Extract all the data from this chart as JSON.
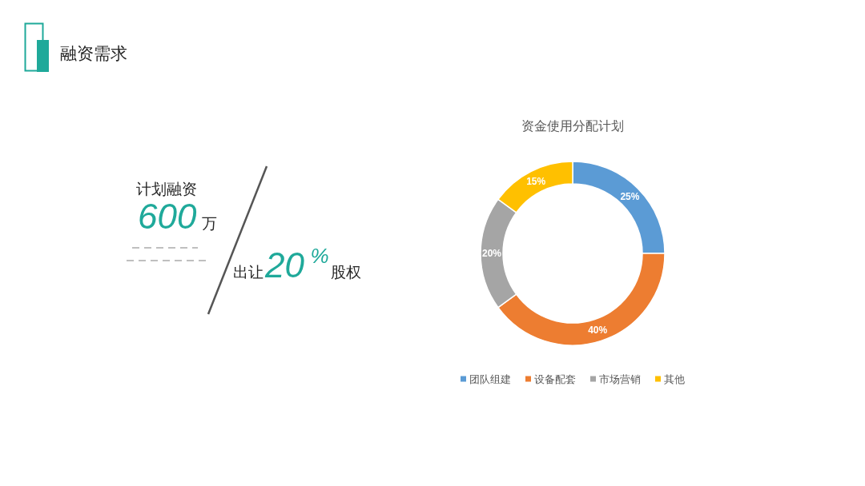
{
  "chart_data": [
    {
      "type": "other",
      "title": "融资需求",
      "annotations": [
        "计划融资",
        "600",
        "万",
        "出让",
        "20",
        "%",
        "股权"
      ]
    },
    {
      "type": "donut",
      "title": "资金使用分配计划",
      "categories": [
        "团队组建",
        "设备配套",
        "市场营销",
        "其他"
      ],
      "values": [
        25,
        40,
        20,
        15
      ],
      "colors": [
        "#5b9bd5",
        "#ed7d31",
        "#a5a5a5",
        "#ffc000"
      ],
      "value_labels": [
        "25%",
        "40%",
        "20%",
        "15%"
      ],
      "legend": "bottom"
    }
  ]
}
